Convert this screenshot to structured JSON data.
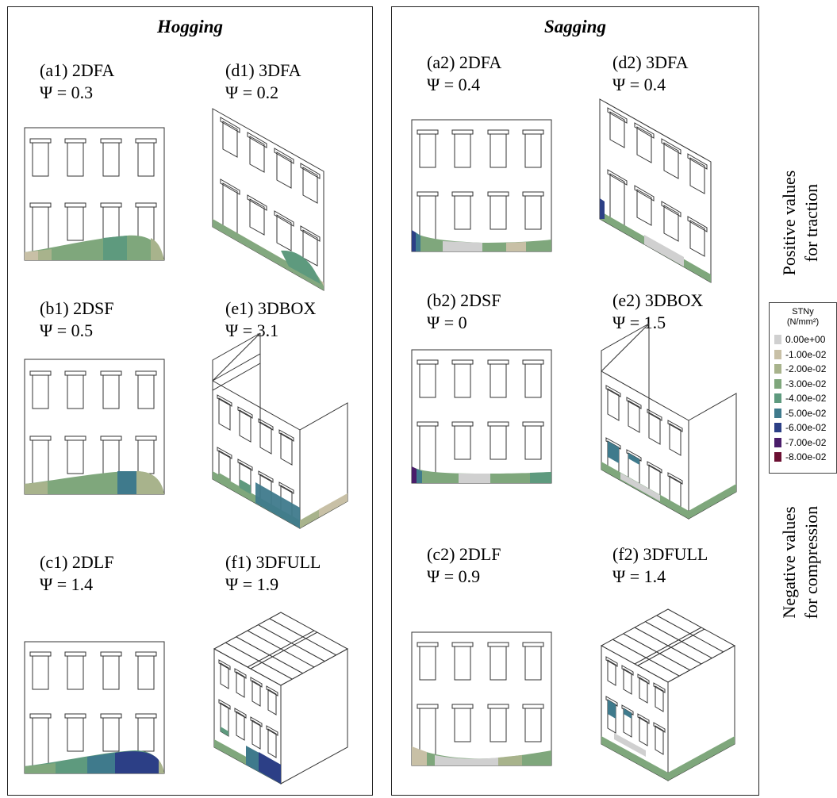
{
  "panels": {
    "hogging": {
      "title": "Hogging",
      "cases": [
        {
          "label": "(a1) 2DFA",
          "psi": "Ψ = 0.3"
        },
        {
          "label": "(d1) 3DFA",
          "psi": "Ψ = 0.2"
        },
        {
          "label": "(b1) 2DSF",
          "psi": "Ψ = 0.5"
        },
        {
          "label": "(e1) 3DBOX",
          "psi": "Ψ = 3.1"
        },
        {
          "label": "(c1) 2DLF",
          "psi": "Ψ = 1.4"
        },
        {
          "label": "(f1) 3DFULL",
          "psi": "Ψ = 1.9"
        }
      ]
    },
    "sagging": {
      "title": "Sagging",
      "cases": [
        {
          "label": "(a2) 2DFA",
          "psi": "Ψ = 0.4"
        },
        {
          "label": "(d2) 3DFA",
          "psi": "Ψ = 0.4"
        },
        {
          "label": "(b2) 2DSF",
          "psi": "Ψ = 0"
        },
        {
          "label": "(e2) 3DBOX",
          "psi": "Ψ = 1.5"
        },
        {
          "label": "(c2) 2DLF",
          "psi": "Ψ = 0.9"
        },
        {
          "label": "(f2) 3DFULL",
          "psi": "Ψ = 1.4"
        }
      ]
    }
  },
  "side_notes": {
    "positive_line1": "Positive values",
    "positive_line2": "for traction",
    "negative_line1": "Negative values",
    "negative_line2": "for compression"
  },
  "legend": {
    "title_line1": "STNy",
    "title_line2": "(N/mm²)",
    "entries": [
      {
        "value": "0.00e+00",
        "color": "#d0d0d0"
      },
      {
        "value": "-1.00e-02",
        "color": "#c8c0a6"
      },
      {
        "value": "-2.00e-02",
        "color": "#a8b38c"
      },
      {
        "value": "-3.00e-02",
        "color": "#7fa77c"
      },
      {
        "value": "-4.00e-02",
        "color": "#5e9a7e"
      },
      {
        "value": "-5.00e-02",
        "color": "#3f7a8c"
      },
      {
        "value": "-6.00e-02",
        "color": "#2c3f86"
      },
      {
        "value": "-7.00e-02",
        "color": "#4a1d6a"
      },
      {
        "value": "-8.00e-02",
        "color": "#6b0f32"
      }
    ]
  }
}
